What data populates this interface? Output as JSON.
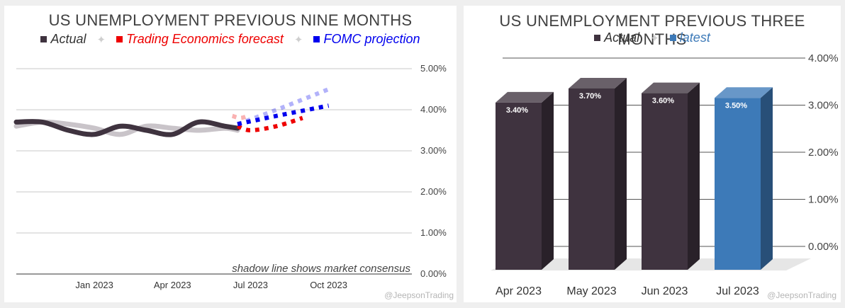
{
  "colors": {
    "actual": "#3f333f",
    "forecast": "#ee0000",
    "fomc": "#0000ee",
    "latest": "#3d7ab8",
    "consensus": "#c9c4c9",
    "grid": "#c8c8c8"
  },
  "left": {
    "title": "US UNEMPLOYMENT PREVIOUS NINE MONTHS",
    "legend": {
      "actual": "Actual",
      "forecast": "Trading Economics forecast",
      "fomc": "FOMC projection",
      "separator": "✦"
    },
    "note": "shadow line shows market consensus",
    "watermark": "@JeepsonTrading"
  },
  "right": {
    "title": "US UNEMPLOYMENT PREVIOUS THREE MONTHS",
    "legend": {
      "actual": "Actual",
      "latest": "latest",
      "separator": "✦"
    },
    "watermark": "@JeepsonTrading"
  },
  "chart_data": [
    {
      "type": "line",
      "title": "US UNEMPLOYMENT PREVIOUS NINE MONTHS",
      "y_tick_labels": [
        "5.00%",
        "4.00%",
        "3.00%",
        "2.00%",
        "1.00%",
        "0.00%"
      ],
      "y_ticks": [
        5,
        4,
        3,
        2,
        1,
        0
      ],
      "ylim": [
        0,
        5
      ],
      "x_tick_labels": [
        "Jan 2023",
        "Apr 2023",
        "Jul 2023",
        "Oct 2023"
      ],
      "x_ticks": [
        3,
        6,
        9,
        12
      ],
      "xlim": [
        0,
        14
      ],
      "legend_position": "top",
      "series": [
        {
          "name": "Actual",
          "style": "solid-thick",
          "x": [
            0,
            1,
            2,
            3,
            4,
            5,
            6,
            7,
            8,
            8.5
          ],
          "y": [
            3.7,
            3.7,
            3.5,
            3.4,
            3.6,
            3.5,
            3.4,
            3.7,
            3.6,
            3.55
          ]
        },
        {
          "name": "market consensus",
          "style": "shadow",
          "x": [
            0,
            1,
            2,
            3,
            4,
            5,
            6,
            7,
            8,
            8.5
          ],
          "y": [
            3.6,
            3.7,
            3.65,
            3.55,
            3.4,
            3.6,
            3.55,
            3.5,
            3.55,
            3.5
          ]
        },
        {
          "name": "Trading Economics forecast",
          "style": "dotted",
          "x": [
            8.5,
            9,
            10,
            11
          ],
          "y": [
            3.6,
            3.5,
            3.6,
            3.8
          ]
        },
        {
          "name": "Trading Economics forecast (consensus)",
          "style": "dotted-faint",
          "x": [
            8.3,
            8.6,
            8.9
          ],
          "y": [
            3.85,
            3.8,
            3.85
          ]
        },
        {
          "name": "FOMC projection",
          "style": "dotted",
          "x": [
            8.5,
            10,
            12
          ],
          "y": [
            3.65,
            3.85,
            4.1
          ]
        },
        {
          "name": "FOMC projection (consensus)",
          "style": "dotted-faint",
          "x": [
            8.5,
            10,
            12
          ],
          "y": [
            3.65,
            4.0,
            4.5
          ]
        }
      ],
      "annotation": "shadow line shows market consensus"
    },
    {
      "type": "bar",
      "title": "US UNEMPLOYMENT PREVIOUS THREE MONTHS",
      "categories": [
        "Apr 2023",
        "May 2023",
        "Jun 2023",
        "Jul 2023"
      ],
      "values": [
        3.4,
        3.7,
        3.6,
        3.5
      ],
      "data_labels": [
        "3.40%",
        "3.70%",
        "3.60%",
        "3.50%"
      ],
      "highlight_index": 3,
      "y_tick_labels": [
        "4.00%",
        "3.00%",
        "2.00%",
        "1.00%",
        "0.00%"
      ],
      "y_ticks": [
        4,
        3,
        2,
        1,
        0
      ],
      "ylim": [
        0,
        4
      ]
    }
  ]
}
